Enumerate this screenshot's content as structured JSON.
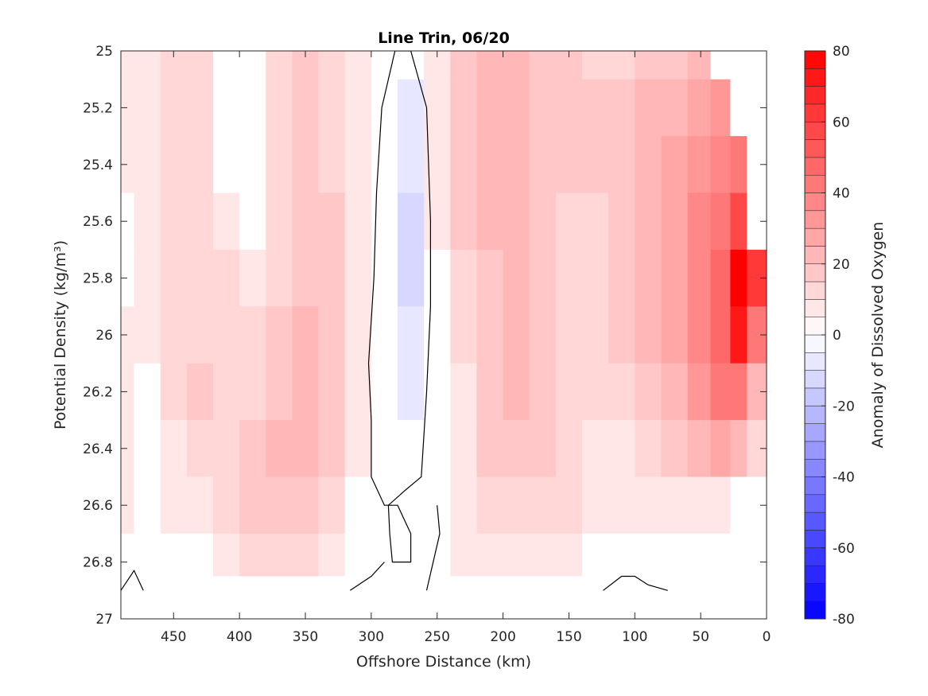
{
  "chart_data": {
    "type": "heatmap",
    "title": "Line Trin, 06/20",
    "xlabel": "Offshore Distance (km)",
    "ylabel": "Potential Density (kg/m³)",
    "colorbar_label": "Anomaly of Dissolved Oxygen",
    "x_reversed": true,
    "xlim": [
      490,
      0
    ],
    "y_reversed": true,
    "ylim": [
      25,
      27
    ],
    "x_ticks": [
      450,
      400,
      350,
      300,
      250,
      200,
      150,
      100,
      50,
      0
    ],
    "x_tick_labels": [
      "450",
      "400",
      "350",
      "300",
      "250",
      "200",
      "150",
      "100",
      "50",
      "0"
    ],
    "y_ticks": [
      25,
      25.2,
      25.4,
      25.6,
      25.8,
      26,
      26.2,
      26.4,
      26.6,
      26.8,
      27
    ],
    "y_tick_labels": [
      "25",
      "25.2",
      "25.4",
      "25.6",
      "25.8",
      "26",
      "26.2",
      "26.4",
      "26.6",
      "26.8",
      "27"
    ],
    "colorbar": {
      "range": [
        -80,
        80
      ],
      "step": 5,
      "ticks": [
        80,
        60,
        40,
        20,
        0,
        -20,
        -40,
        -60,
        -80
      ],
      "tick_labels": [
        "80",
        "60",
        "40",
        "20",
        "0",
        "-20",
        "-40",
        "-60",
        "-80"
      ],
      "color_low": "#0000ff",
      "color_mid": "#ffffff",
      "color_high": "#ff0000"
    },
    "grid": false,
    "x": [
      490,
      470,
      450,
      430,
      410,
      390,
      370,
      350,
      330,
      310,
      290,
      270,
      250,
      230,
      210,
      190,
      170,
      150,
      130,
      110,
      90,
      70,
      50,
      35,
      20,
      10
    ],
    "y": [
      25.0,
      25.2,
      25.4,
      25.6,
      25.8,
      26.0,
      26.2,
      26.4,
      26.6,
      26.8,
      26.9
    ],
    "z": [
      [
        5,
        5,
        10,
        10,
        0,
        0,
        10,
        15,
        10,
        5,
        0,
        0,
        5,
        15,
        20,
        20,
        15,
        15,
        10,
        10,
        15,
        15,
        20,
        0,
        0,
        0
      ],
      [
        5,
        5,
        10,
        10,
        0,
        0,
        10,
        15,
        10,
        5,
        0,
        -5,
        5,
        15,
        20,
        20,
        15,
        15,
        15,
        15,
        20,
        20,
        25,
        30,
        0,
        0
      ],
      [
        5,
        5,
        10,
        10,
        0,
        0,
        10,
        15,
        10,
        5,
        0,
        -5,
        5,
        15,
        20,
        20,
        15,
        15,
        15,
        15,
        20,
        25,
        30,
        35,
        40,
        0
      ],
      [
        0,
        5,
        10,
        10,
        5,
        0,
        10,
        15,
        15,
        5,
        0,
        -10,
        5,
        15,
        20,
        20,
        15,
        10,
        10,
        15,
        20,
        25,
        35,
        40,
        55,
        0
      ],
      [
        0,
        5,
        10,
        10,
        10,
        5,
        10,
        15,
        15,
        5,
        0,
        -10,
        0,
        10,
        15,
        20,
        15,
        10,
        10,
        15,
        20,
        25,
        35,
        45,
        80,
        60
      ],
      [
        5,
        5,
        10,
        10,
        10,
        10,
        15,
        20,
        15,
        5,
        0,
        -5,
        0,
        10,
        15,
        20,
        15,
        10,
        10,
        15,
        20,
        25,
        35,
        45,
        70,
        40
      ],
      [
        5,
        0,
        10,
        15,
        10,
        10,
        15,
        20,
        15,
        5,
        0,
        -5,
        0,
        5,
        15,
        20,
        15,
        10,
        10,
        10,
        15,
        20,
        30,
        40,
        40,
        20
      ],
      [
        5,
        0,
        5,
        10,
        10,
        15,
        20,
        20,
        15,
        5,
        0,
        0,
        0,
        5,
        15,
        15,
        15,
        10,
        5,
        5,
        10,
        15,
        20,
        25,
        20,
        10
      ],
      [
        5,
        0,
        5,
        5,
        10,
        15,
        15,
        15,
        10,
        0,
        0,
        0,
        0,
        5,
        10,
        10,
        10,
        10,
        5,
        5,
        5,
        5,
        5,
        5,
        0,
        0
      ],
      [
        0,
        0,
        0,
        0,
        5,
        10,
        10,
        10,
        5,
        0,
        0,
        0,
        0,
        5,
        5,
        5,
        5,
        5,
        0,
        0,
        0,
        0,
        0,
        0,
        0,
        0
      ],
      [
        0,
        0,
        0,
        0,
        0,
        0,
        0,
        0,
        0,
        0,
        0,
        0,
        0,
        0,
        0,
        0,
        0,
        0,
        0,
        0,
        0,
        0,
        0,
        0,
        0,
        0
      ]
    ],
    "zero_contours": [
      [
        [
          270,
          25.0
        ],
        [
          282,
          25.0
        ],
        [
          292,
          25.2
        ],
        [
          296,
          25.5
        ],
        [
          298,
          25.8
        ],
        [
          302,
          26.1
        ],
        [
          300,
          26.3
        ],
        [
          300,
          26.5
        ],
        [
          290,
          26.6
        ],
        [
          280,
          26.6
        ],
        [
          270,
          26.7
        ],
        [
          270,
          26.8
        ],
        [
          284,
          26.8
        ],
        [
          286,
          26.7
        ],
        [
          287,
          26.6
        ],
        [
          275,
          26.55
        ],
        [
          262,
          26.5
        ],
        [
          258,
          26.2
        ],
        [
          255,
          25.9
        ],
        [
          255,
          25.6
        ],
        [
          258,
          25.2
        ],
        [
          270,
          25.0
        ]
      ],
      [
        [
          316,
          26.9
        ],
        [
          300,
          26.85
        ],
        [
          290,
          26.8
        ]
      ],
      [
        [
          258,
          26.9
        ],
        [
          248,
          26.7
        ],
        [
          250,
          26.6
        ]
      ],
      [
        [
          490,
          26.9
        ],
        [
          480,
          26.83
        ],
        [
          473,
          26.9
        ]
      ],
      [
        [
          124,
          26.9
        ],
        [
          110,
          26.85
        ],
        [
          100,
          26.85
        ],
        [
          90,
          26.88
        ],
        [
          75,
          26.9
        ]
      ]
    ]
  }
}
